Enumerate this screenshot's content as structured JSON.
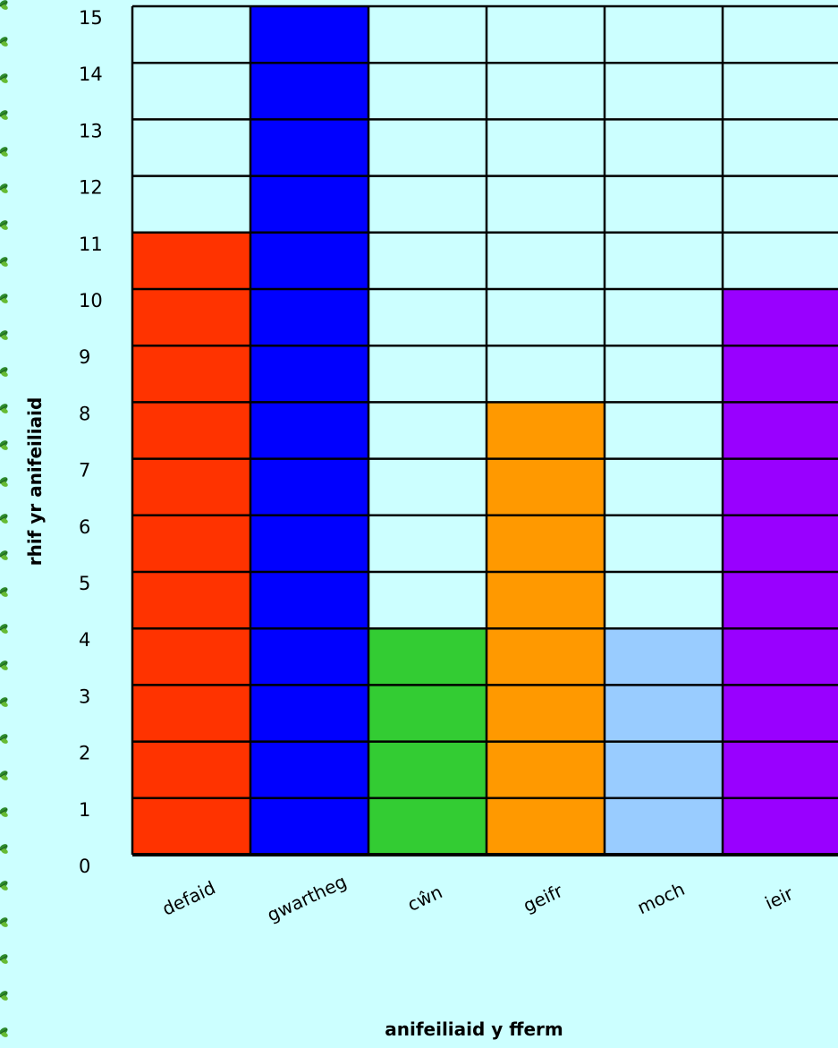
{
  "chart_data": {
    "type": "bar",
    "categories": [
      "defaid",
      "gwartheg",
      "cŵn",
      "geifr",
      "moch",
      "ieir"
    ],
    "values": [
      11,
      15,
      4,
      8,
      4,
      10
    ],
    "bar_colors": [
      "#ff3300",
      "#0000ff",
      "#33cc33",
      "#ff9900",
      "#99ccff",
      "#9900ff"
    ],
    "background_color": "#ccffff",
    "grid_color": "#000000",
    "xlabel": "anifeiliaid y fferm",
    "ylabel": "rhif yr anifeiliaid",
    "ylim": [
      0,
      15
    ],
    "yticks": [
      0,
      1,
      2,
      3,
      4,
      5,
      6,
      7,
      8,
      9,
      10,
      11,
      12,
      13,
      14,
      15
    ],
    "grid": true,
    "legend": "none",
    "border_decoration_icon": "green-leaf-icon"
  }
}
